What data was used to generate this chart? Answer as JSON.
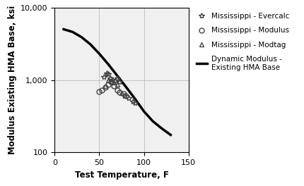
{
  "title": "",
  "xlabel": "Test Temperature, F",
  "ylabel": "Modulus Existing HMA Base, ksi",
  "xlim": [
    0,
    150
  ],
  "ylim": [
    100,
    10000
  ],
  "xticks": [
    0,
    50,
    100,
    150
  ],
  "background_color": "#f0f0f0",
  "grid_color": "#bbbbbb",
  "dynamic_modulus_line": {
    "x": [
      10,
      20,
      30,
      40,
      50,
      60,
      70,
      80,
      90,
      100,
      110,
      120,
      130
    ],
    "y": [
      5000,
      4600,
      3900,
      3100,
      2300,
      1650,
      1150,
      800,
      550,
      370,
      270,
      215,
      175
    ],
    "color": "#000000",
    "linewidth": 2.5,
    "label": "Dynamic Modulus -\nExisting HMA Base"
  },
  "evercalc": {
    "x": [
      55,
      58,
      60,
      62,
      65,
      68,
      70,
      73,
      78,
      83,
      88,
      90
    ],
    "y": [
      1100,
      1250,
      1200,
      1050,
      1020,
      980,
      1050,
      950,
      600,
      560,
      510,
      480
    ],
    "marker": "*",
    "color": "#444444",
    "markersize": 6,
    "label": "Mississippi - Evercalc"
  },
  "modulus": {
    "x": [
      50,
      53,
      57,
      60,
      63,
      66,
      70,
      73,
      77,
      80
    ],
    "y": [
      690,
      730,
      790,
      870,
      940,
      820,
      720,
      680,
      640,
      610
    ],
    "marker": "o",
    "color": "#444444",
    "markersize": 5,
    "label": "Mississippi - Modulus"
  },
  "modtag": {
    "x": [
      57,
      60,
      63,
      66,
      70,
      75
    ],
    "y": [
      820,
      980,
      960,
      920,
      870,
      660
    ],
    "marker": "^",
    "color": "#444444",
    "markersize": 5,
    "label": "Mississippi - Modtag"
  },
  "legend_fontsize": 7.5,
  "axis_label_fontsize": 8.5,
  "tick_fontsize": 8
}
